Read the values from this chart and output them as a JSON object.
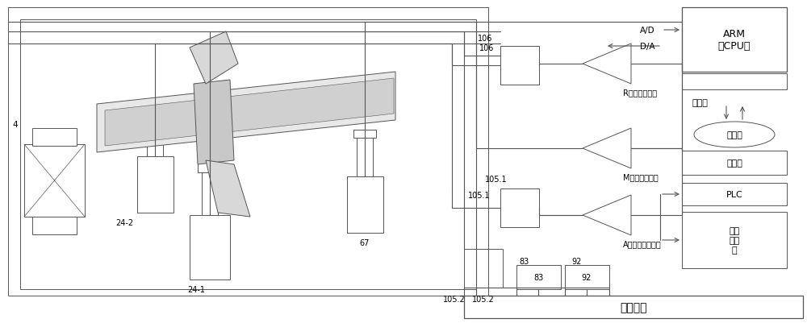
{
  "bg_color": "#ffffff",
  "lc": "#555555",
  "fig_width": 10.0,
  "fig_height": 4.02,
  "dpi": 100,
  "labels": {
    "arm_cpu": "ARM\n（CPU）",
    "ethernet": "以太网",
    "computer": "计算机",
    "console": "操纵台",
    "plc": "PLC",
    "motor": "电机\n启动\n器",
    "oil_tank": "加载油筱",
    "r_channel": "R通道加载控制",
    "m_channel": "M通道加载控制",
    "a_channel": "A通道加载控制．",
    "ad": "A/D",
    "da": "D/A",
    "n4": "4",
    "n24_1": "24-1",
    "n24_2": "24-2",
    "n67": "67",
    "n83": "83",
    "n92": "92",
    "n105_1": "105.1",
    "n105_2": "105.2",
    "n106": "106"
  }
}
